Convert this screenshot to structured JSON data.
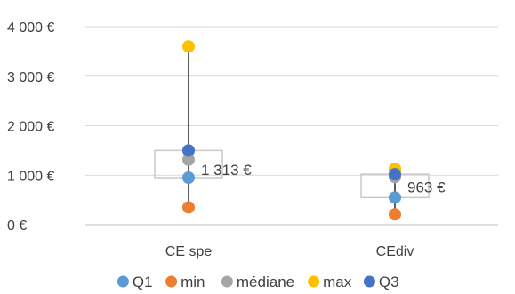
{
  "chart_data": {
    "type": "scatter",
    "title": "",
    "xlabel": "",
    "ylabel": "",
    "ylim": [
      0,
      4000
    ],
    "y_ticks": [
      {
        "value": 0,
        "label": "0 €"
      },
      {
        "value": 1000,
        "label": "1 000 €"
      },
      {
        "value": 2000,
        "label": "2 000 €"
      },
      {
        "value": 3000,
        "label": "3 000 €"
      },
      {
        "value": 4000,
        "label": "4 000 €"
      }
    ],
    "grid": true,
    "legend_position": "bottom",
    "categories": [
      "CE spe",
      "CEdiv"
    ],
    "series": [
      {
        "name": "Q1",
        "color": "#5B9BD5",
        "values": [
          950,
          550
        ]
      },
      {
        "name": "min",
        "color": "#ED7D31",
        "values": [
          350,
          210
        ]
      },
      {
        "name": "médiane",
        "color": "#A5A5A5",
        "values": [
          1313,
          963
        ]
      },
      {
        "name": "max",
        "color": "#FFC000",
        "values": [
          3600,
          1130
        ]
      },
      {
        "name": "Q3",
        "color": "#4472C4",
        "values": [
          1500,
          1020
        ]
      }
    ],
    "data_labels": [
      "1 313 €",
      "963 €"
    ]
  }
}
